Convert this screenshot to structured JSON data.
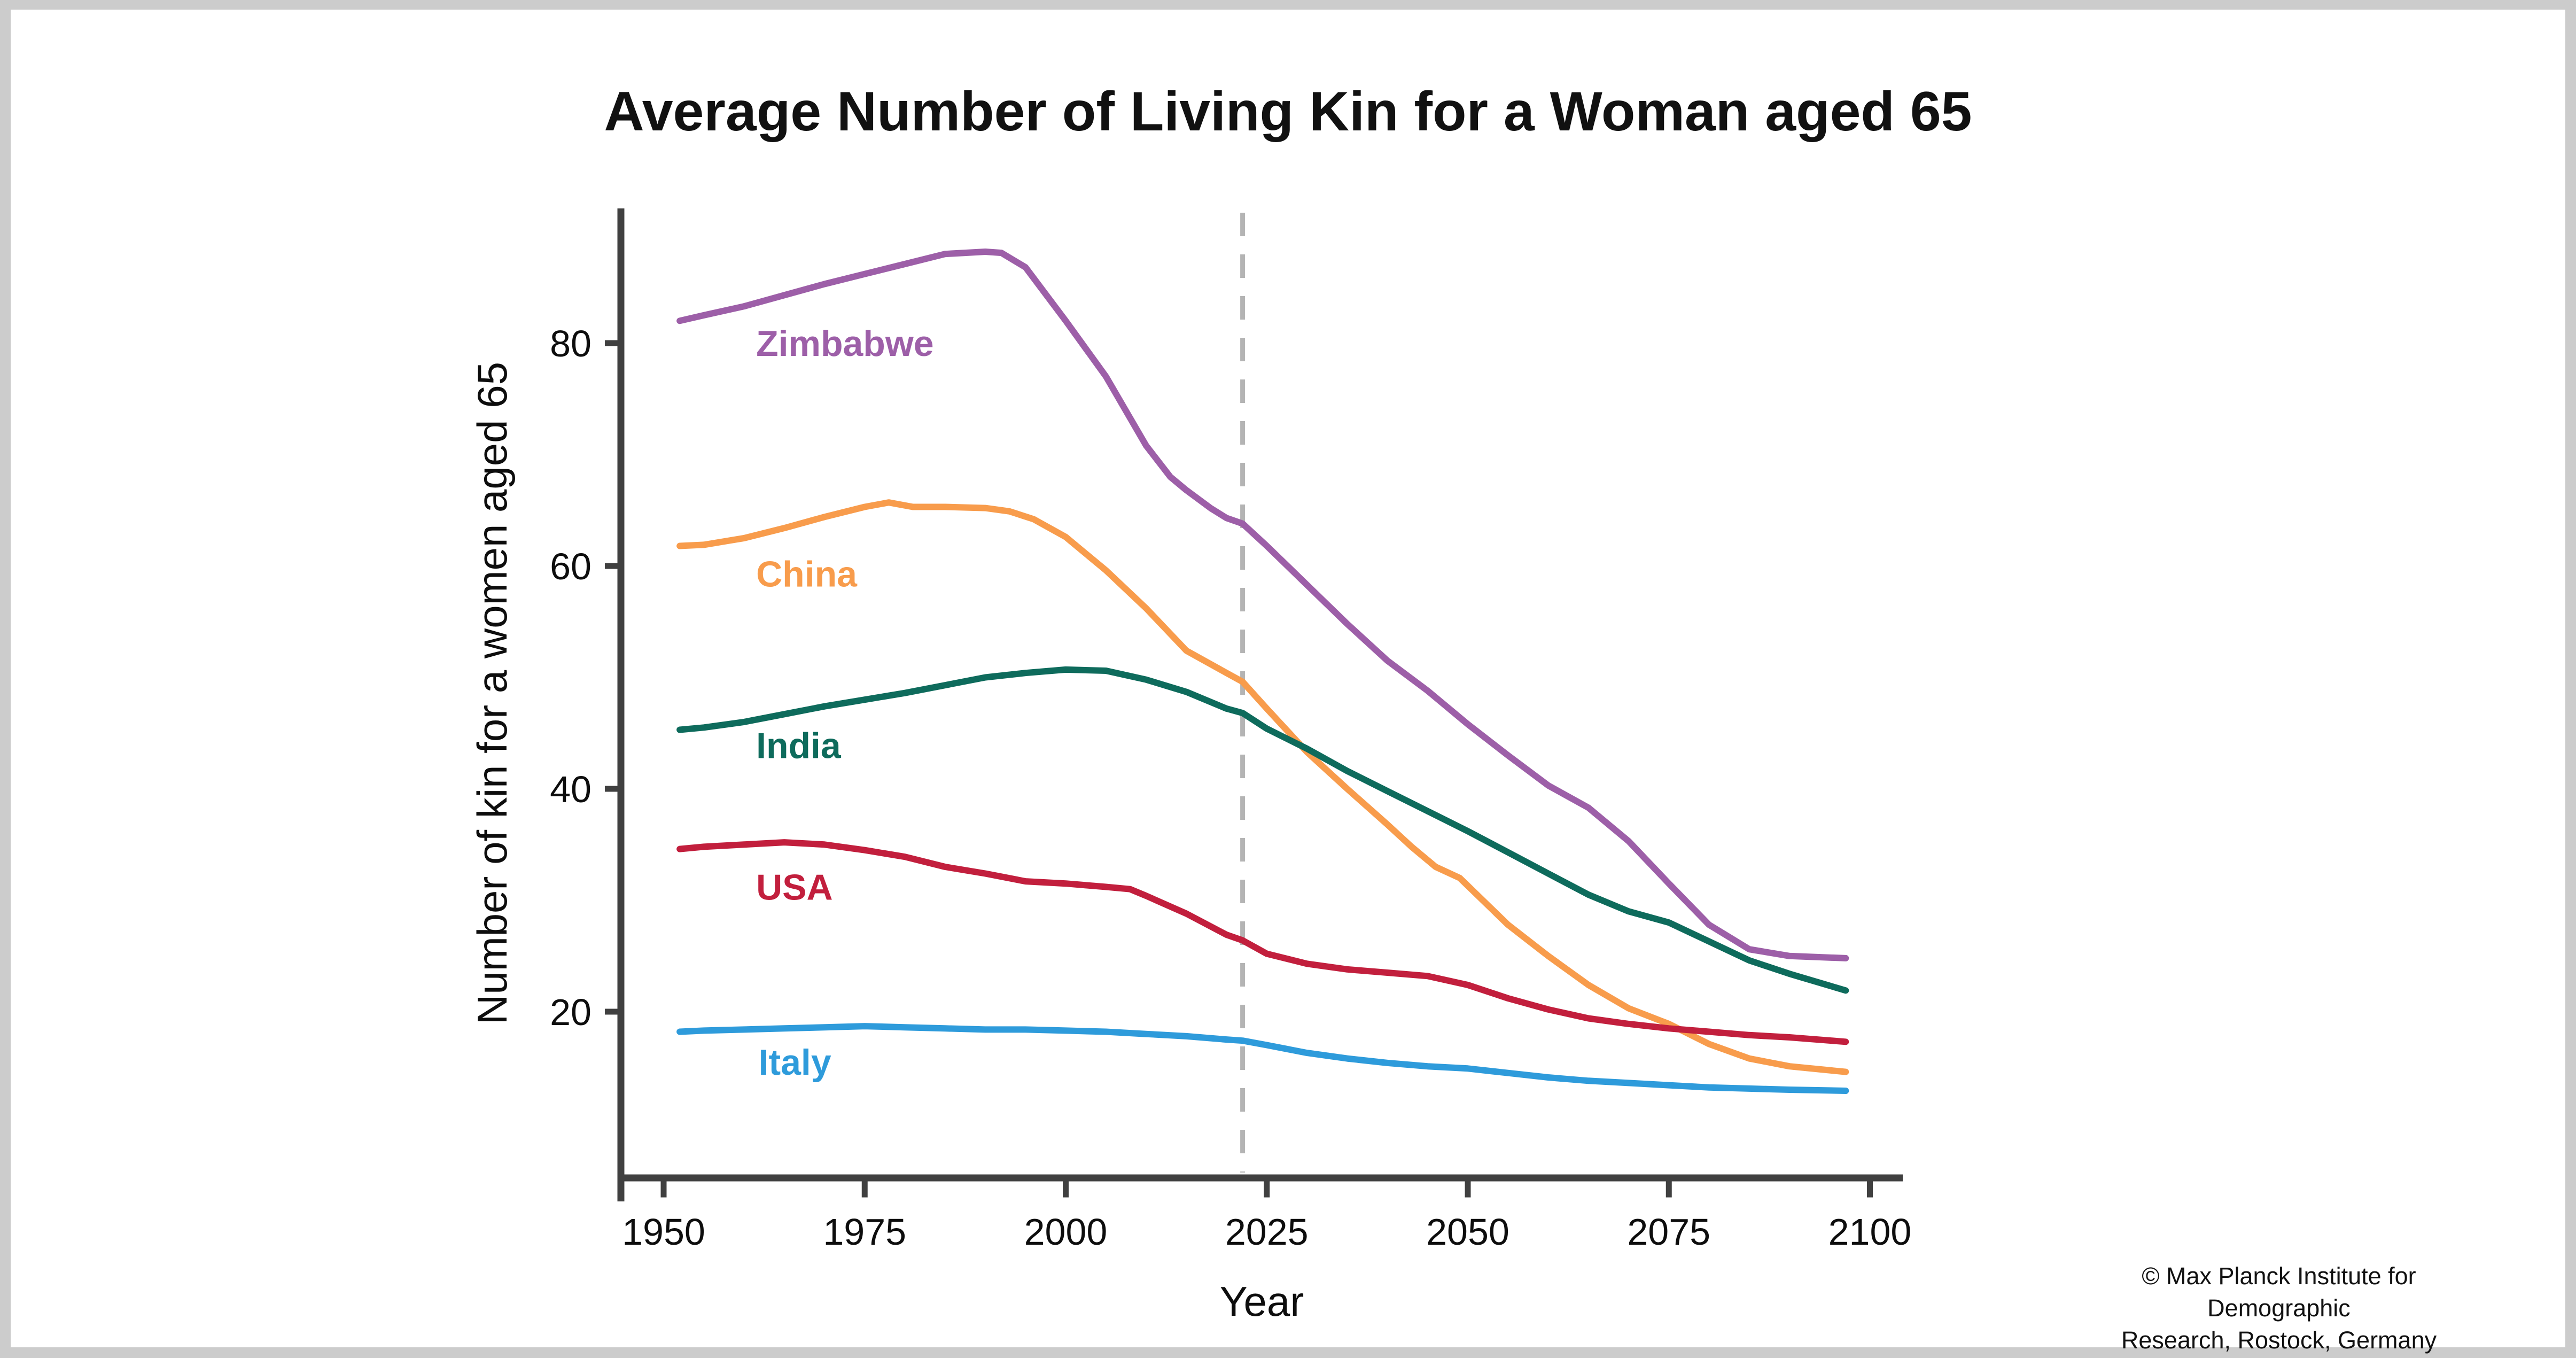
{
  "title": "Average Number of Living Kin for a Woman aged 65",
  "attribution": {
    "line1": "© Max Planck Institute for Demographic",
    "line2": "Research, Rostock, Germany"
  },
  "colors": {
    "axis": "#404040",
    "text": "#0d0d0d",
    "reference_line": "#b4b4b4",
    "page_border": "#cccccc",
    "background": "#ffffff"
  },
  "chart_data": {
    "type": "line",
    "title": "Average Number of Living Kin for a Woman aged 65",
    "xlabel": "Year",
    "ylabel": "Number of kin for a women aged 65",
    "x_ticks": [
      1950,
      1975,
      2000,
      2025,
      2050,
      2075,
      2100
    ],
    "y_ticks": [
      20,
      40,
      60,
      80
    ],
    "xlim": [
      1945,
      2103
    ],
    "ylim": [
      5,
      92
    ],
    "grid": false,
    "legend_position": "inline-labels",
    "reference_line": {
      "x": 2022,
      "style": "dashed",
      "color": "#b4b4b4"
    },
    "series": [
      {
        "name": "Zimbabwe",
        "color": "#9d5fa8",
        "label": {
          "year": 1961.5,
          "value": 80.0
        },
        "points": [
          [
            1952,
            82.0
          ],
          [
            1955,
            82.5
          ],
          [
            1960,
            83.3
          ],
          [
            1965,
            84.3
          ],
          [
            1970,
            85.3
          ],
          [
            1975,
            86.2
          ],
          [
            1980,
            87.1
          ],
          [
            1985,
            88.0
          ],
          [
            1990,
            88.2
          ],
          [
            1992,
            88.1
          ],
          [
            1995,
            86.8
          ],
          [
            2000,
            82.0
          ],
          [
            2005,
            77.0
          ],
          [
            2010,
            70.8
          ],
          [
            2013,
            68.0
          ],
          [
            2015,
            66.8
          ],
          [
            2018,
            65.2
          ],
          [
            2020,
            64.3
          ],
          [
            2022,
            63.8
          ],
          [
            2025,
            61.8
          ],
          [
            2030,
            58.3
          ],
          [
            2035,
            54.8
          ],
          [
            2040,
            51.5
          ],
          [
            2045,
            48.8
          ],
          [
            2050,
            45.8
          ],
          [
            2055,
            43.0
          ],
          [
            2060,
            40.3
          ],
          [
            2065,
            38.3
          ],
          [
            2070,
            35.3
          ],
          [
            2075,
            31.5
          ],
          [
            2080,
            27.8
          ],
          [
            2085,
            25.6
          ],
          [
            2090,
            25.0
          ],
          [
            2097,
            24.8
          ]
        ]
      },
      {
        "name": "China",
        "color": "#f89c4c",
        "label": {
          "year": 1961.5,
          "value": 59.3
        },
        "points": [
          [
            1952,
            61.8
          ],
          [
            1955,
            61.9
          ],
          [
            1960,
            62.5
          ],
          [
            1965,
            63.4
          ],
          [
            1970,
            64.4
          ],
          [
            1975,
            65.3
          ],
          [
            1978,
            65.7
          ],
          [
            1981,
            65.3
          ],
          [
            1985,
            65.3
          ],
          [
            1990,
            65.2
          ],
          [
            1993,
            64.9
          ],
          [
            1996,
            64.2
          ],
          [
            2000,
            62.6
          ],
          [
            2005,
            59.6
          ],
          [
            2010,
            56.2
          ],
          [
            2015,
            52.4
          ],
          [
            2020,
            50.4
          ],
          [
            2022,
            49.6
          ],
          [
            2025,
            47.2
          ],
          [
            2030,
            43.3
          ],
          [
            2035,
            40.0
          ],
          [
            2040,
            36.8
          ],
          [
            2043,
            34.8
          ],
          [
            2046,
            33.0
          ],
          [
            2049,
            32.0
          ],
          [
            2055,
            27.8
          ],
          [
            2060,
            25.0
          ],
          [
            2065,
            22.4
          ],
          [
            2070,
            20.3
          ],
          [
            2075,
            18.9
          ],
          [
            2080,
            17.1
          ],
          [
            2085,
            15.8
          ],
          [
            2090,
            15.1
          ],
          [
            2097,
            14.6
          ]
        ]
      },
      {
        "name": "India",
        "color": "#0e6b5c",
        "label": {
          "year": 1961.5,
          "value": 43.9
        },
        "points": [
          [
            1952,
            45.3
          ],
          [
            1955,
            45.5
          ],
          [
            1960,
            46.0
          ],
          [
            1965,
            46.7
          ],
          [
            1970,
            47.4
          ],
          [
            1975,
            48.0
          ],
          [
            1980,
            48.6
          ],
          [
            1985,
            49.3
          ],
          [
            1990,
            50.0
          ],
          [
            1995,
            50.4
          ],
          [
            2000,
            50.7
          ],
          [
            2005,
            50.6
          ],
          [
            2010,
            49.8
          ],
          [
            2015,
            48.7
          ],
          [
            2020,
            47.2
          ],
          [
            2022,
            46.8
          ],
          [
            2025,
            45.4
          ],
          [
            2030,
            43.6
          ],
          [
            2035,
            41.6
          ],
          [
            2040,
            39.8
          ],
          [
            2045,
            38.0
          ],
          [
            2050,
            36.2
          ],
          [
            2055,
            34.3
          ],
          [
            2060,
            32.4
          ],
          [
            2065,
            30.5
          ],
          [
            2070,
            29.0
          ],
          [
            2075,
            28.0
          ],
          [
            2080,
            26.3
          ],
          [
            2085,
            24.6
          ],
          [
            2090,
            23.4
          ],
          [
            2097,
            21.9
          ]
        ]
      },
      {
        "name": "USA",
        "color": "#c21f3d",
        "label": {
          "year": 1961.5,
          "value": 31.2
        },
        "points": [
          [
            1952,
            34.6
          ],
          [
            1955,
            34.8
          ],
          [
            1960,
            35.0
          ],
          [
            1965,
            35.2
          ],
          [
            1970,
            35.0
          ],
          [
            1975,
            34.5
          ],
          [
            1980,
            33.9
          ],
          [
            1985,
            33.0
          ],
          [
            1990,
            32.4
          ],
          [
            1995,
            31.7
          ],
          [
            2000,
            31.5
          ],
          [
            2005,
            31.2
          ],
          [
            2008,
            31.0
          ],
          [
            2010,
            30.4
          ],
          [
            2015,
            28.8
          ],
          [
            2020,
            26.9
          ],
          [
            2022,
            26.4
          ],
          [
            2025,
            25.2
          ],
          [
            2030,
            24.3
          ],
          [
            2035,
            23.8
          ],
          [
            2040,
            23.5
          ],
          [
            2045,
            23.2
          ],
          [
            2050,
            22.4
          ],
          [
            2055,
            21.2
          ],
          [
            2060,
            20.2
          ],
          [
            2065,
            19.4
          ],
          [
            2070,
            18.9
          ],
          [
            2075,
            18.5
          ],
          [
            2080,
            18.2
          ],
          [
            2085,
            17.9
          ],
          [
            2090,
            17.7
          ],
          [
            2097,
            17.3
          ]
        ]
      },
      {
        "name": "Italy",
        "color": "#2e9bdb",
        "label": {
          "year": 1961.8,
          "value": 15.5
        },
        "points": [
          [
            1952,
            18.2
          ],
          [
            1955,
            18.3
          ],
          [
            1960,
            18.4
          ],
          [
            1965,
            18.5
          ],
          [
            1970,
            18.6
          ],
          [
            1975,
            18.7
          ],
          [
            1980,
            18.6
          ],
          [
            1985,
            18.5
          ],
          [
            1990,
            18.4
          ],
          [
            1995,
            18.4
          ],
          [
            2000,
            18.3
          ],
          [
            2005,
            18.2
          ],
          [
            2010,
            18.0
          ],
          [
            2015,
            17.8
          ],
          [
            2020,
            17.5
          ],
          [
            2022,
            17.4
          ],
          [
            2025,
            17.0
          ],
          [
            2030,
            16.3
          ],
          [
            2035,
            15.8
          ],
          [
            2040,
            15.4
          ],
          [
            2045,
            15.1
          ],
          [
            2050,
            14.9
          ],
          [
            2055,
            14.5
          ],
          [
            2060,
            14.1
          ],
          [
            2065,
            13.8
          ],
          [
            2070,
            13.6
          ],
          [
            2075,
            13.4
          ],
          [
            2080,
            13.2
          ],
          [
            2085,
            13.1
          ],
          [
            2090,
            13.0
          ],
          [
            2097,
            12.9
          ]
        ]
      }
    ]
  }
}
